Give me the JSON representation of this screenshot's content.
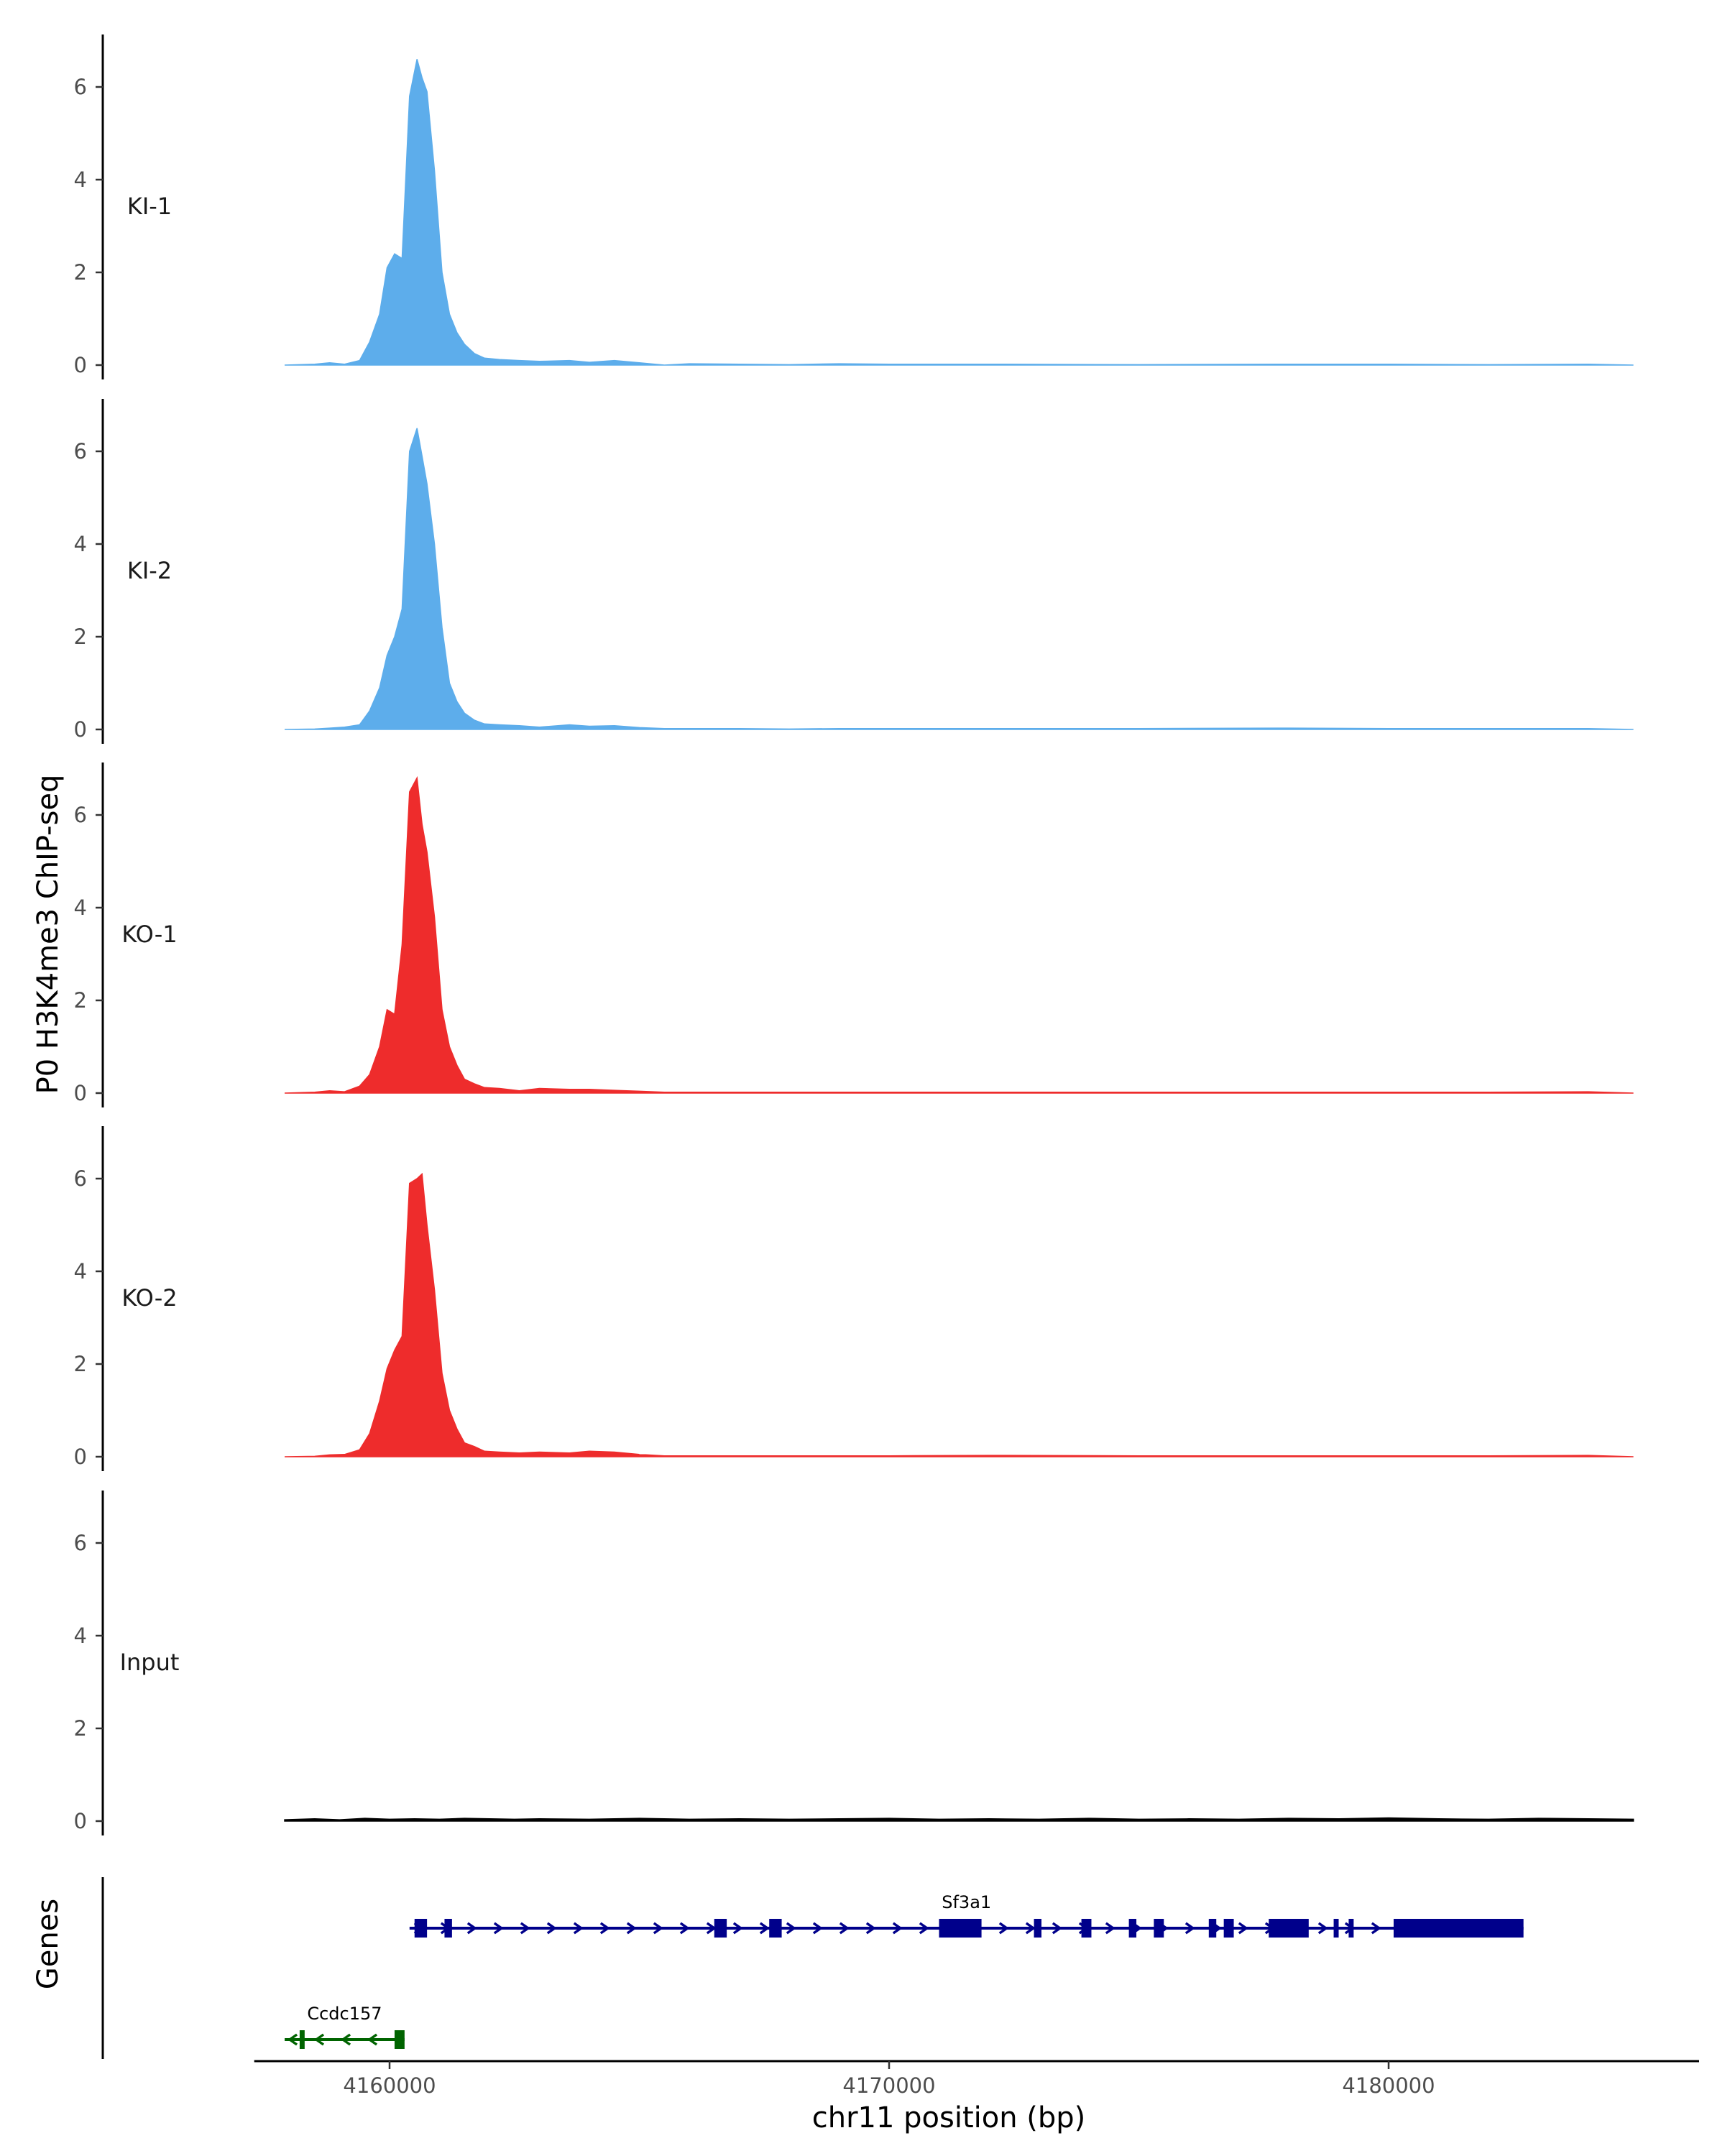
{
  "chart_data": {
    "type": "area",
    "title": "",
    "ylabel": "P0 H3K4me3 ChIP-seq",
    "xlabel": "chr11 position (bp)",
    "xlim": [
      4156600,
      4186600
    ],
    "x_ticks": [
      4160000,
      4170000,
      4180000
    ],
    "x_tick_labels": [
      "4160000",
      "4170000",
      "4180000"
    ],
    "ylim": [
      0,
      7
    ],
    "y_ticks": [
      0,
      2,
      4,
      6
    ],
    "y_tick_labels": [
      "0",
      "2",
      "4",
      "6"
    ],
    "gene_track_label": "Genes",
    "tracks": [
      {
        "name": "KI-1",
        "color": "#5DADEB",
        "x": [
          4157900,
          4158500,
          4158800,
          4159100,
          4159400,
          4159600,
          4159800,
          4159950,
          4160100,
          4160250,
          4160400,
          4160550,
          4160650,
          4160750,
          4160900,
          4161050,
          4161200,
          4161350,
          4161500,
          4161700,
          4161900,
          4162200,
          4162600,
          4163000,
          4163600,
          4164000,
          4164500,
          4165000,
          4165500,
          4166000,
          4167000,
          4168000,
          4169000,
          4170000,
          4172000,
          4175000,
          4178000,
          4180000,
          4182000,
          4184000,
          4184900
        ],
        "values": [
          0.0,
          0.02,
          0.05,
          0.02,
          0.1,
          0.5,
          1.1,
          2.1,
          2.4,
          2.3,
          5.8,
          6.6,
          6.2,
          5.9,
          4.2,
          2.0,
          1.1,
          0.7,
          0.45,
          0.25,
          0.15,
          0.12,
          0.1,
          0.08,
          0.1,
          0.06,
          0.1,
          0.05,
          0.0,
          0.03,
          0.02,
          0.01,
          0.03,
          0.02,
          0.02,
          0.01,
          0.02,
          0.02,
          0.01,
          0.02,
          0.0
        ]
      },
      {
        "name": "KI-2",
        "color": "#5DADEB",
        "x": [
          4157900,
          4158500,
          4158800,
          4159100,
          4159400,
          4159600,
          4159800,
          4159950,
          4160100,
          4160250,
          4160400,
          4160550,
          4160650,
          4160750,
          4160900,
          4161050,
          4161200,
          4161350,
          4161500,
          4161700,
          4161900,
          4162200,
          4162600,
          4163000,
          4163600,
          4164000,
          4164500,
          4165000,
          4165500,
          4166000,
          4167000,
          4168000,
          4169000,
          4170000,
          4172000,
          4175000,
          4178000,
          4180000,
          4182000,
          4184000,
          4184900
        ],
        "values": [
          0.0,
          0.01,
          0.03,
          0.05,
          0.1,
          0.4,
          0.9,
          1.6,
          2.0,
          2.6,
          6.0,
          6.5,
          5.9,
          5.3,
          4.0,
          2.2,
          1.0,
          0.6,
          0.35,
          0.2,
          0.12,
          0.1,
          0.08,
          0.05,
          0.1,
          0.07,
          0.08,
          0.04,
          0.02,
          0.02,
          0.02,
          0.01,
          0.02,
          0.02,
          0.02,
          0.02,
          0.03,
          0.02,
          0.02,
          0.02,
          0.0
        ]
      },
      {
        "name": "KO-1",
        "color": "#EE2C2C",
        "x": [
          4157900,
          4158500,
          4158800,
          4159100,
          4159400,
          4159600,
          4159800,
          4159950,
          4160100,
          4160250,
          4160400,
          4160550,
          4160650,
          4160750,
          4160900,
          4161050,
          4161200,
          4161350,
          4161500,
          4161700,
          4161900,
          4162200,
          4162600,
          4163000,
          4163600,
          4164000,
          4164500,
          4165000,
          4165500,
          4166000,
          4167000,
          4168000,
          4169000,
          4170000,
          4172000,
          4175000,
          4178000,
          4180000,
          4182000,
          4184000,
          4184900
        ],
        "values": [
          0.0,
          0.02,
          0.05,
          0.03,
          0.15,
          0.4,
          1.0,
          1.8,
          1.7,
          3.2,
          6.5,
          6.8,
          5.8,
          5.2,
          3.8,
          1.8,
          1.0,
          0.6,
          0.3,
          0.2,
          0.12,
          0.1,
          0.05,
          0.1,
          0.08,
          0.08,
          0.06,
          0.04,
          0.02,
          0.02,
          0.02,
          0.02,
          0.02,
          0.02,
          0.02,
          0.02,
          0.02,
          0.02,
          0.02,
          0.03,
          0.0
        ]
      },
      {
        "name": "KO-2",
        "color": "#EE2C2C",
        "x": [
          4157900,
          4158500,
          4158800,
          4159100,
          4159400,
          4159600,
          4159800,
          4159950,
          4160100,
          4160250,
          4160400,
          4160550,
          4160650,
          4160750,
          4160900,
          4161050,
          4161200,
          4161350,
          4161500,
          4161700,
          4161900,
          4162200,
          4162600,
          4163000,
          4163600,
          4164000,
          4164500,
          4165000,
          4165500,
          4166000,
          4167000,
          4168000,
          4169000,
          4170000,
          4172000,
          4175000,
          4178000,
          4180000,
          4182000,
          4184000,
          4184900
        ],
        "values": [
          0.0,
          0.01,
          0.04,
          0.05,
          0.15,
          0.5,
          1.2,
          1.9,
          2.3,
          2.6,
          5.9,
          6.0,
          6.1,
          5.0,
          3.6,
          1.8,
          1.0,
          0.6,
          0.3,
          0.22,
          0.12,
          0.1,
          0.08,
          0.1,
          0.08,
          0.12,
          0.1,
          0.05,
          0.02,
          0.02,
          0.02,
          0.02,
          0.02,
          0.02,
          0.03,
          0.02,
          0.02,
          0.02,
          0.02,
          0.03,
          0.0
        ]
      },
      {
        "name": "Input",
        "color": "#000000",
        "x": [
          4157900,
          4158500,
          4159000,
          4159500,
          4160000,
          4160500,
          4161000,
          4161500,
          4162000,
          4162500,
          4163000,
          4164000,
          4165000,
          4166000,
          4167000,
          4168000,
          4169000,
          4170000,
          4171000,
          4172000,
          4173000,
          4174000,
          4175000,
          4176000,
          4177000,
          4178000,
          4179000,
          4180000,
          4181000,
          4182000,
          4183000,
          4184000,
          4184900
        ],
        "values": [
          0.03,
          0.05,
          0.03,
          0.06,
          0.04,
          0.05,
          0.04,
          0.06,
          0.05,
          0.04,
          0.05,
          0.04,
          0.06,
          0.04,
          0.05,
          0.04,
          0.05,
          0.06,
          0.04,
          0.05,
          0.04,
          0.06,
          0.04,
          0.05,
          0.04,
          0.06,
          0.05,
          0.07,
          0.05,
          0.04,
          0.06,
          0.05,
          0.04
        ]
      }
    ],
    "genes": [
      {
        "name": "Sf3a1",
        "strand": "+",
        "color": "#00008B",
        "start": 4160400,
        "end": 4182700,
        "exons": [
          [
            4160500,
            4160750
          ],
          [
            4161100,
            4161250
          ],
          [
            4166500,
            4166750
          ],
          [
            4167600,
            4167850
          ],
          [
            4171000,
            4171850
          ],
          [
            4172900,
            4173050
          ],
          [
            4173850,
            4174050
          ],
          [
            4174800,
            4174950
          ],
          [
            4175300,
            4175500
          ],
          [
            4176400,
            4176550
          ],
          [
            4176700,
            4176900
          ],
          [
            4177600,
            4178400
          ],
          [
            4178900,
            4179000
          ],
          [
            4179200,
            4179300
          ],
          [
            4180100,
            4182700
          ]
        ]
      },
      {
        "name": "Ccdc157",
        "strand": "-",
        "color": "#006400",
        "start": 4157900,
        "end": 4160300,
        "exons": [
          [
            4158200,
            4158300
          ],
          [
            4160100,
            4160300
          ]
        ]
      }
    ]
  }
}
